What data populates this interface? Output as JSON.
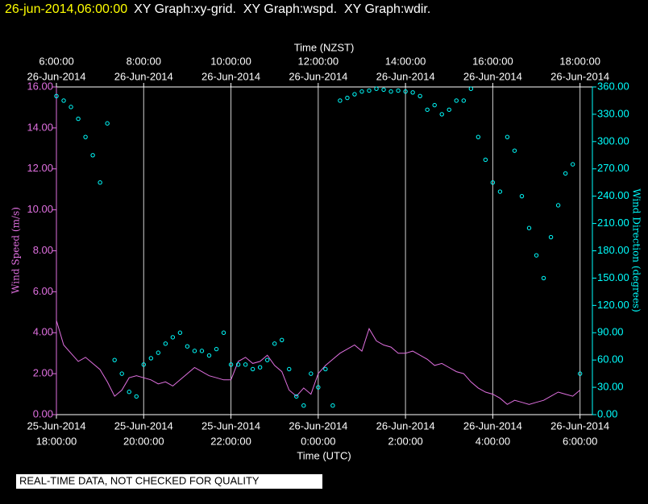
{
  "chart_data": {
    "type": "line-scatter",
    "title": "26-jun-2014,06:00:00",
    "subtitle": "XY Graph:xy-grid.  XY Graph:wspd.  XY Graph:wdir.",
    "xlabel": "Time (UTC)",
    "x2label": "Time (NZST)",
    "note": "REAL-TIME DATA, NOT CHECKED FOR QUALITY",
    "grid": true,
    "xlim": [
      "2014-06-25T18:00:00",
      "2014-06-26T06:17:00"
    ],
    "x2lim": [
      "2014-06-26T06:00:00",
      "2014-06-26T18:17:00"
    ],
    "xticks": [
      {
        "value": "2014-06-25T18:00:00",
        "label": [
          "25-Jun-2014",
          "18:00:00"
        ]
      },
      {
        "value": "2014-06-25T20:00:00",
        "label": [
          "25-Jun-2014",
          "20:00:00"
        ]
      },
      {
        "value": "2014-06-25T22:00:00",
        "label": [
          "25-Jun-2014",
          "22:00:00"
        ]
      },
      {
        "value": "2014-06-26T00:00:00",
        "label": [
          "26-Jun-2014",
          "0:00:00"
        ]
      },
      {
        "value": "2014-06-26T02:00:00",
        "label": [
          "26-Jun-2014",
          "2:00:00"
        ]
      },
      {
        "value": "2014-06-26T04:00:00",
        "label": [
          "26-Jun-2014",
          "4:00:00"
        ]
      },
      {
        "value": "2014-06-26T06:00:00",
        "label": [
          "26-Jun-2014",
          "6:00:00"
        ]
      }
    ],
    "x2ticks": [
      {
        "value": "2014-06-26T06:00:00",
        "label": [
          "6:00:00",
          "26-Jun-2014"
        ]
      },
      {
        "value": "2014-06-26T08:00:00",
        "label": [
          "8:00:00",
          "26-Jun-2014"
        ]
      },
      {
        "value": "2014-06-26T10:00:00",
        "label": [
          "10:00:00",
          "26-Jun-2014"
        ]
      },
      {
        "value": "2014-06-26T12:00:00",
        "label": [
          "12:00:00",
          "26-Jun-2014"
        ]
      },
      {
        "value": "2014-06-26T14:00:00",
        "label": [
          "14:00:00",
          "26-Jun-2014"
        ]
      },
      {
        "value": "2014-06-26T16:00:00",
        "label": [
          "16:00:00",
          "26-Jun-2014"
        ]
      },
      {
        "value": "2014-06-26T18:00:00",
        "label": [
          "18:00:00",
          "26-Jun-2014"
        ]
      }
    ],
    "ylim": [
      0,
      16
    ],
    "yticks": [
      {
        "value": 0,
        "label": "0.00"
      },
      {
        "value": 2,
        "label": "2.00"
      },
      {
        "value": 4,
        "label": "4.00"
      },
      {
        "value": 6,
        "label": "6.00"
      },
      {
        "value": 8,
        "label": "8.00"
      },
      {
        "value": 10,
        "label": "10.00"
      },
      {
        "value": 12,
        "label": "12.00"
      },
      {
        "value": 14,
        "label": "14.00"
      },
      {
        "value": 16,
        "label": "16.00"
      }
    ],
    "y2lim": [
      0,
      360
    ],
    "y2ticks": [
      {
        "value": 0,
        "label": "0.00"
      },
      {
        "value": 30,
        "label": "30.00"
      },
      {
        "value": 60,
        "label": "60.00"
      },
      {
        "value": 90,
        "label": "90.00"
      },
      {
        "value": 120,
        "label": "120.00"
      },
      {
        "value": 150,
        "label": "150.00"
      },
      {
        "value": 180,
        "label": "180.00"
      },
      {
        "value": 210,
        "label": "210.00"
      },
      {
        "value": 240,
        "label": "240.00"
      },
      {
        "value": 270,
        "label": "270.00"
      },
      {
        "value": 300,
        "label": "300.00"
      },
      {
        "value": 330,
        "label": "330.00"
      },
      {
        "value": 360,
        "label": "360.00"
      }
    ],
    "x": [
      "2014-06-25T18:00:00",
      "2014-06-25T18:10:00",
      "2014-06-25T18:20:00",
      "2014-06-25T18:30:00",
      "2014-06-25T18:40:00",
      "2014-06-25T18:50:00",
      "2014-06-25T19:00:00",
      "2014-06-25T19:10:00",
      "2014-06-25T19:20:00",
      "2014-06-25T19:30:00",
      "2014-06-25T19:40:00",
      "2014-06-25T19:50:00",
      "2014-06-25T20:00:00",
      "2014-06-25T20:10:00",
      "2014-06-25T20:20:00",
      "2014-06-25T20:30:00",
      "2014-06-25T20:40:00",
      "2014-06-25T20:50:00",
      "2014-06-25T21:00:00",
      "2014-06-25T21:10:00",
      "2014-06-25T21:20:00",
      "2014-06-25T21:30:00",
      "2014-06-25T21:40:00",
      "2014-06-25T21:50:00",
      "2014-06-25T22:00:00",
      "2014-06-25T22:10:00",
      "2014-06-25T22:20:00",
      "2014-06-25T22:30:00",
      "2014-06-25T22:40:00",
      "2014-06-25T22:50:00",
      "2014-06-25T23:00:00",
      "2014-06-25T23:10:00",
      "2014-06-25T23:20:00",
      "2014-06-25T23:30:00",
      "2014-06-25T23:40:00",
      "2014-06-25T23:50:00",
      "2014-06-26T00:00:00",
      "2014-06-26T00:10:00",
      "2014-06-26T00:20:00",
      "2014-06-26T00:30:00",
      "2014-06-26T00:40:00",
      "2014-06-26T00:50:00",
      "2014-06-26T01:00:00",
      "2014-06-26T01:10:00",
      "2014-06-26T01:20:00",
      "2014-06-26T01:30:00",
      "2014-06-26T01:40:00",
      "2014-06-26T01:50:00",
      "2014-06-26T02:00:00",
      "2014-06-26T02:10:00",
      "2014-06-26T02:20:00",
      "2014-06-26T02:30:00",
      "2014-06-26T02:40:00",
      "2014-06-26T02:50:00",
      "2014-06-26T03:00:00",
      "2014-06-26T03:10:00",
      "2014-06-26T03:20:00",
      "2014-06-26T03:30:00",
      "2014-06-26T03:40:00",
      "2014-06-26T03:50:00",
      "2014-06-26T04:00:00",
      "2014-06-26T04:10:00",
      "2014-06-26T04:20:00",
      "2014-06-26T04:30:00",
      "2014-06-26T04:40:00",
      "2014-06-26T04:50:00",
      "2014-06-26T05:00:00",
      "2014-06-26T05:10:00",
      "2014-06-26T05:20:00",
      "2014-06-26T05:30:00",
      "2014-06-26T05:40:00",
      "2014-06-26T05:50:00",
      "2014-06-26T06:00:00"
    ],
    "series": [
      {
        "name": "Wind Speed (m/s)",
        "color": "#e070e0",
        "style": "line",
        "values": [
          4.6,
          3.4,
          3.0,
          2.6,
          2.8,
          2.5,
          2.2,
          1.6,
          0.9,
          1.2,
          1.8,
          1.9,
          1.8,
          1.7,
          1.5,
          1.6,
          1.4,
          1.7,
          2.0,
          2.3,
          2.1,
          1.9,
          1.8,
          1.7,
          1.7,
          2.6,
          2.8,
          2.5,
          2.6,
          2.9,
          2.4,
          2.1,
          1.2,
          0.9,
          1.3,
          1.0,
          2.0,
          2.4,
          2.7,
          3.0,
          3.2,
          3.4,
          3.1,
          4.2,
          3.6,
          3.4,
          3.3,
          3.0,
          3.0,
          3.1,
          2.9,
          2.7,
          2.4,
          2.5,
          2.3,
          2.1,
          2.0,
          1.6,
          1.3,
          1.1,
          1.0,
          0.8,
          0.5,
          0.7,
          0.6,
          0.5,
          0.6,
          0.7,
          0.9,
          1.1,
          1.0,
          0.9,
          1.2
        ]
      },
      {
        "name": "Wind Direction (degrees)",
        "color": "#00ffff",
        "style": "scatter",
        "axis": "y2",
        "values": [
          350,
          345,
          338,
          325,
          305,
          285,
          255,
          320,
          60,
          45,
          25,
          20,
          55,
          62,
          68,
          78,
          85,
          90,
          75,
          70,
          70,
          65,
          72,
          90,
          55,
          55,
          55,
          50,
          52,
          60,
          78,
          82,
          50,
          20,
          10,
          45,
          30,
          50,
          10,
          345,
          348,
          352,
          355,
          356,
          358,
          357,
          355,
          356,
          355,
          354,
          350,
          335,
          340,
          330,
          335,
          345,
          345,
          358,
          305,
          280,
          255,
          245,
          305,
          290,
          240,
          205,
          175,
          150,
          195,
          230,
          265,
          275,
          45
        ]
      }
    ]
  }
}
